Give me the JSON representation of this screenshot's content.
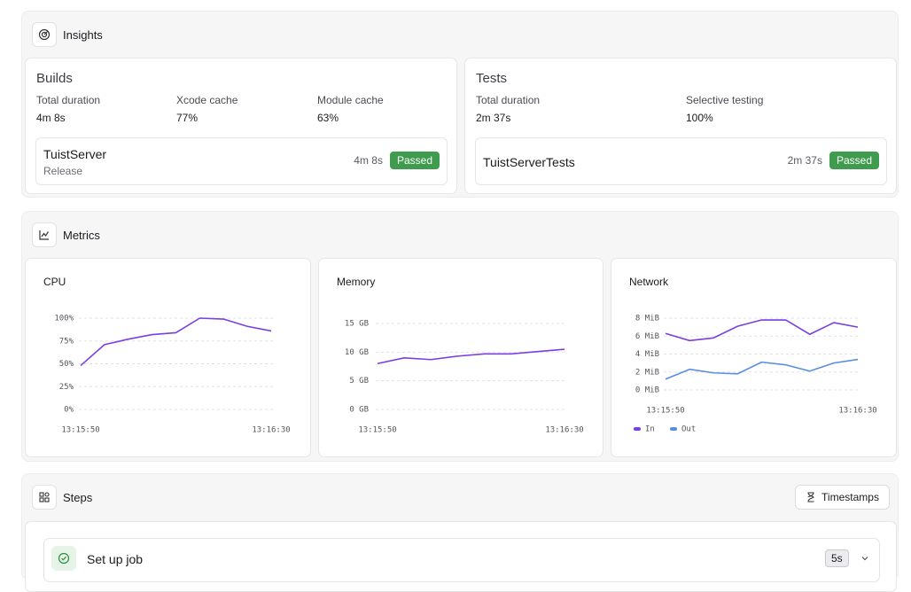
{
  "insights": {
    "title": "Insights",
    "cards": [
      {
        "title": "Builds",
        "stats": [
          {
            "label": "Total duration",
            "value": "4m 8s"
          },
          {
            "label": "Xcode cache",
            "value": "77%"
          },
          {
            "label": "Module cache",
            "value": "63%"
          }
        ],
        "run": {
          "name": "TuistServer",
          "subtitle": "Release",
          "duration": "4m 8s",
          "status": "Passed"
        }
      },
      {
        "title": "Tests",
        "stats": [
          {
            "label": "Total duration",
            "value": "2m 37s"
          },
          {
            "label": "Selective testing",
            "value": "100%"
          }
        ],
        "run": {
          "name": "TuistServerTests",
          "duration": "2m 37s",
          "status": "Passed"
        }
      }
    ]
  },
  "metrics": {
    "title": "Metrics"
  },
  "chart_data": [
    {
      "type": "line",
      "title": "CPU",
      "categories": [
        "13:15:50",
        null,
        null,
        null,
        null,
        null,
        null,
        null,
        "13:16:30"
      ],
      "series": [
        {
          "color": "#7a3fe0",
          "values": [
            48,
            71,
            77,
            82,
            84,
            100,
            99,
            91,
            86
          ]
        }
      ],
      "ylim": [
        0,
        100
      ],
      "yticks": [
        {
          "value": 0,
          "label": "0%"
        },
        {
          "value": 25,
          "label": "25%"
        },
        {
          "value": 50,
          "label": "50%"
        },
        {
          "value": 75,
          "label": "75%"
        },
        {
          "value": 100,
          "label": "100%"
        }
      ],
      "grid": true
    },
    {
      "type": "line",
      "title": "Memory",
      "categories": [
        "13:15:50",
        null,
        null,
        null,
        null,
        null,
        null,
        "13:16:30"
      ],
      "series": [
        {
          "color": "#7a3fe0",
          "values": [
            8.0,
            9.0,
            8.7,
            9.3,
            9.7,
            9.7,
            10.1,
            10.5
          ]
        }
      ],
      "ylim": [
        0,
        15
      ],
      "yticks": [
        {
          "value": 0,
          "label": "0 GB"
        },
        {
          "value": 5,
          "label": "5 GB"
        },
        {
          "value": 10,
          "label": "10 GB"
        },
        {
          "value": 15,
          "label": "15 GB"
        }
      ],
      "grid": true
    },
    {
      "type": "line",
      "title": "Network",
      "categories": [
        "13:15:50",
        null,
        null,
        null,
        null,
        null,
        null,
        null,
        "13:16:30"
      ],
      "series": [
        {
          "name": "In",
          "color": "#7a3fe0",
          "values": [
            6.3,
            5.5,
            5.8,
            7.1,
            7.8,
            7.8,
            6.2,
            7.5,
            7.0
          ]
        },
        {
          "name": "Out",
          "color": "#5b8ee2",
          "values": [
            1.2,
            2.3,
            1.9,
            1.8,
            3.1,
            2.8,
            2.1,
            3.0,
            3.4
          ]
        }
      ],
      "ylim": [
        0,
        8
      ],
      "yticks": [
        {
          "value": 0,
          "label": "0 MiB"
        },
        {
          "value": 2,
          "label": "2 MiB"
        },
        {
          "value": 4,
          "label": "4 MiB"
        },
        {
          "value": 6,
          "label": "6 MiB"
        },
        {
          "value": 8,
          "label": "8 MiB"
        }
      ],
      "grid": true,
      "legend": "bottom-left"
    }
  ],
  "steps": {
    "title": "Steps",
    "button": "Timestamps",
    "items": [
      {
        "name": "Set up job",
        "duration": "5s"
      }
    ]
  }
}
